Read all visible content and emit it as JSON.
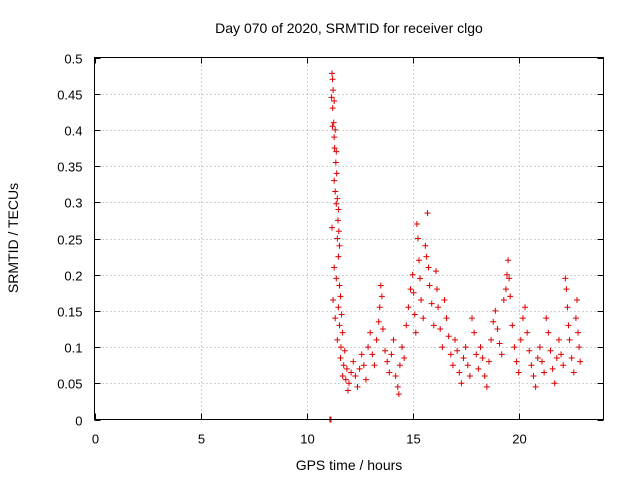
{
  "chart_data": {
    "type": "scatter",
    "title": "Day 070 of 2020, SRMTID for receiver clgo",
    "xlabel": "GPS time / hours",
    "ylabel": "SRMTID / TECUs",
    "xlim": [
      0,
      24
    ],
    "ylim": [
      0,
      0.5
    ],
    "xticks": [
      0,
      5,
      10,
      15,
      20
    ],
    "xtick_labels": [
      "0",
      "5",
      "10",
      "15",
      "20"
    ],
    "yticks": [
      0,
      0.05,
      0.1,
      0.15,
      0.2,
      0.25,
      0.3,
      0.35,
      0.4,
      0.45,
      0.5
    ],
    "ytick_labels": [
      "0",
      "0.05",
      "0.1",
      "0.15",
      "0.2",
      "0.25",
      "0.3",
      "0.35",
      "0.4",
      "0.45",
      "0.5"
    ],
    "grid": true,
    "marker": "+",
    "color": "#e00000",
    "series": [
      {
        "name": "SRMTID",
        "points": [
          [
            11.1,
            0.0
          ],
          [
            11.12,
            0.0
          ],
          [
            11.15,
            0.0
          ],
          [
            11.2,
            0.478
          ],
          [
            11.22,
            0.47
          ],
          [
            11.25,
            0.455
          ],
          [
            11.18,
            0.445
          ],
          [
            11.23,
            0.43
          ],
          [
            11.3,
            0.44
          ],
          [
            11.28,
            0.41
          ],
          [
            11.22,
            0.405
          ],
          [
            11.35,
            0.4
          ],
          [
            11.3,
            0.39
          ],
          [
            11.32,
            0.375
          ],
          [
            11.4,
            0.37
          ],
          [
            11.38,
            0.355
          ],
          [
            11.42,
            0.34
          ],
          [
            11.3,
            0.33
          ],
          [
            11.35,
            0.315
          ],
          [
            11.45,
            0.305
          ],
          [
            11.4,
            0.298
          ],
          [
            11.5,
            0.29
          ],
          [
            11.48,
            0.275
          ],
          [
            11.52,
            0.26
          ],
          [
            11.2,
            0.265
          ],
          [
            11.45,
            0.25
          ],
          [
            11.55,
            0.24
          ],
          [
            11.5,
            0.225
          ],
          [
            11.3,
            0.21
          ],
          [
            11.4,
            0.195
          ],
          [
            11.55,
            0.185
          ],
          [
            11.6,
            0.17
          ],
          [
            11.25,
            0.165
          ],
          [
            11.5,
            0.155
          ],
          [
            11.65,
            0.145
          ],
          [
            11.35,
            0.14
          ],
          [
            11.55,
            0.13
          ],
          [
            11.7,
            0.12
          ],
          [
            11.45,
            0.11
          ],
          [
            11.62,
            0.1
          ],
          [
            11.8,
            0.095
          ],
          [
            11.6,
            0.085
          ],
          [
            11.75,
            0.075
          ],
          [
            11.9,
            0.07
          ],
          [
            11.7,
            0.06
          ],
          [
            11.85,
            0.055
          ],
          [
            12.0,
            0.05
          ],
          [
            11.95,
            0.04
          ],
          [
            12.1,
            0.065
          ],
          [
            12.2,
            0.08
          ],
          [
            12.3,
            0.06
          ],
          [
            12.4,
            0.045
          ],
          [
            12.5,
            0.07
          ],
          [
            12.6,
            0.09
          ],
          [
            12.7,
            0.075
          ],
          [
            12.8,
            0.055
          ],
          [
            12.9,
            0.1
          ],
          [
            13.0,
            0.12
          ],
          [
            13.1,
            0.09
          ],
          [
            13.2,
            0.075
          ],
          [
            13.3,
            0.11
          ],
          [
            13.4,
            0.135
          ],
          [
            13.5,
            0.185
          ],
          [
            13.55,
            0.17
          ],
          [
            13.45,
            0.155
          ],
          [
            13.6,
            0.125
          ],
          [
            13.7,
            0.095
          ],
          [
            13.8,
            0.08
          ],
          [
            13.9,
            0.065
          ],
          [
            14.0,
            0.09
          ],
          [
            14.1,
            0.11
          ],
          [
            14.2,
            0.06
          ],
          [
            14.3,
            0.045
          ],
          [
            14.35,
            0.035
          ],
          [
            14.4,
            0.075
          ],
          [
            14.5,
            0.1
          ],
          [
            14.6,
            0.085
          ],
          [
            14.7,
            0.13
          ],
          [
            14.8,
            0.155
          ],
          [
            14.9,
            0.18
          ],
          [
            15.0,
            0.2
          ],
          [
            15.05,
            0.175
          ],
          [
            15.1,
            0.145
          ],
          [
            15.15,
            0.12
          ],
          [
            15.2,
            0.27
          ],
          [
            15.25,
            0.25
          ],
          [
            15.3,
            0.22
          ],
          [
            15.35,
            0.195
          ],
          [
            15.4,
            0.165
          ],
          [
            15.5,
            0.14
          ],
          [
            15.6,
            0.24
          ],
          [
            15.65,
            0.225
          ],
          [
            15.7,
            0.285
          ],
          [
            15.75,
            0.21
          ],
          [
            15.8,
            0.185
          ],
          [
            15.9,
            0.16
          ],
          [
            16.0,
            0.13
          ],
          [
            16.1,
            0.205
          ],
          [
            16.15,
            0.18
          ],
          [
            16.2,
            0.155
          ],
          [
            16.3,
            0.125
          ],
          [
            16.4,
            0.1
          ],
          [
            16.5,
            0.165
          ],
          [
            16.6,
            0.14
          ],
          [
            16.7,
            0.115
          ],
          [
            16.8,
            0.09
          ],
          [
            16.9,
            0.075
          ],
          [
            17.0,
            0.11
          ],
          [
            17.1,
            0.095
          ],
          [
            17.2,
            0.065
          ],
          [
            17.3,
            0.05
          ],
          [
            17.4,
            0.085
          ],
          [
            17.5,
            0.1
          ],
          [
            17.6,
            0.075
          ],
          [
            17.7,
            0.06
          ],
          [
            17.8,
            0.14
          ],
          [
            17.9,
            0.12
          ],
          [
            18.0,
            0.09
          ],
          [
            18.1,
            0.07
          ],
          [
            18.2,
            0.1
          ],
          [
            18.3,
            0.085
          ],
          [
            18.4,
            0.06
          ],
          [
            18.5,
            0.045
          ],
          [
            18.6,
            0.08
          ],
          [
            18.7,
            0.11
          ],
          [
            18.8,
            0.135
          ],
          [
            18.9,
            0.15
          ],
          [
            19.0,
            0.125
          ],
          [
            19.1,
            0.105
          ],
          [
            19.2,
            0.09
          ],
          [
            19.3,
            0.165
          ],
          [
            19.4,
            0.18
          ],
          [
            19.45,
            0.2
          ],
          [
            19.5,
            0.22
          ],
          [
            19.55,
            0.195
          ],
          [
            19.6,
            0.17
          ],
          [
            19.7,
            0.13
          ],
          [
            19.8,
            0.1
          ],
          [
            19.9,
            0.08
          ],
          [
            20.0,
            0.065
          ],
          [
            20.1,
            0.11
          ],
          [
            20.2,
            0.14
          ],
          [
            20.3,
            0.155
          ],
          [
            20.4,
            0.12
          ],
          [
            20.5,
            0.095
          ],
          [
            20.6,
            0.075
          ],
          [
            20.7,
            0.06
          ],
          [
            20.8,
            0.045
          ],
          [
            20.9,
            0.085
          ],
          [
            21.0,
            0.1
          ],
          [
            21.1,
            0.08
          ],
          [
            21.2,
            0.065
          ],
          [
            21.3,
            0.14
          ],
          [
            21.4,
            0.12
          ],
          [
            21.5,
            0.095
          ],
          [
            21.6,
            0.07
          ],
          [
            21.7,
            0.05
          ],
          [
            21.8,
            0.085
          ],
          [
            21.9,
            0.11
          ],
          [
            22.0,
            0.09
          ],
          [
            22.1,
            0.075
          ],
          [
            22.2,
            0.195
          ],
          [
            22.25,
            0.18
          ],
          [
            22.3,
            0.155
          ],
          [
            22.35,
            0.13
          ],
          [
            22.4,
            0.11
          ],
          [
            22.5,
            0.085
          ],
          [
            22.6,
            0.065
          ],
          [
            22.7,
            0.14
          ],
          [
            22.75,
            0.165
          ],
          [
            22.8,
            0.12
          ],
          [
            22.85,
            0.1
          ],
          [
            22.9,
            0.08
          ]
        ]
      }
    ]
  }
}
